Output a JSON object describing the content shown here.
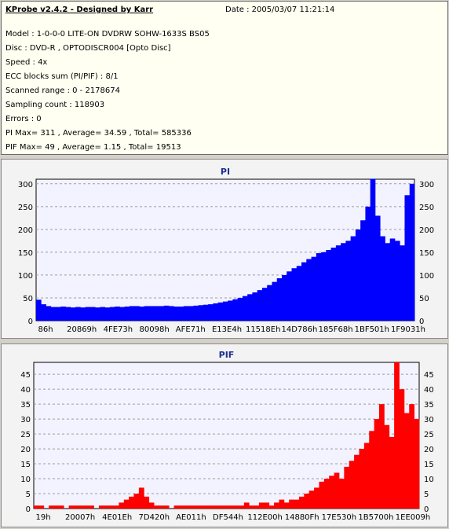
{
  "header": {
    "title": "KProbe v2.4.2 - Designed by Karr",
    "date": "Date : 2005/03/07 11:21:14",
    "lines": [
      "Model : 1-0-0-0 LITE-ON DVDRW SOHW-1633S BS05",
      "Disc : DVD-R , OPTODISCR004 [Opto Disc]",
      "Speed : 4x",
      "ECC blocks sum (PI/PIF) : 8/1",
      "Scanned range : 0 - 2178674",
      "Sampling count : 118903",
      "Errors : 0",
      "PI Max= 311 , Average= 34.59 , Total= 585336",
      "PIF Max= 49 , Average= 1.15 , Total= 19513"
    ]
  },
  "chart_data": [
    {
      "type": "area",
      "title": "PI",
      "ylim": [
        0,
        310
      ],
      "yticks": [
        0,
        50,
        100,
        150,
        200,
        250,
        300
      ],
      "xtick_labels": [
        "86h",
        "20869h",
        "4FE73h",
        "80098h",
        "AFE71h",
        "E13E4h",
        "11518Eh",
        "14D786h",
        "185F68h",
        "1BF501h",
        "1F9031h"
      ],
      "color": "#0000ff",
      "grid": true,
      "y": [
        46,
        36,
        32,
        30,
        30,
        31,
        30,
        29,
        30,
        29,
        30,
        30,
        29,
        30,
        29,
        30,
        31,
        30,
        31,
        32,
        32,
        31,
        32,
        32,
        32,
        32,
        33,
        32,
        31,
        31,
        32,
        32,
        33,
        34,
        35,
        36,
        38,
        40,
        42,
        44,
        47,
        50,
        54,
        58,
        62,
        67,
        72,
        78,
        85,
        93,
        100,
        108,
        115,
        120,
        128,
        135,
        140,
        148,
        150,
        155,
        160,
        165,
        170,
        175,
        185,
        200,
        220,
        250,
        311,
        230,
        185,
        170,
        180,
        175,
        165,
        275,
        300
      ]
    },
    {
      "type": "area",
      "title": "PIF",
      "ylim": [
        0,
        49
      ],
      "yticks": [
        0,
        5,
        10,
        15,
        20,
        25,
        30,
        35,
        40,
        45
      ],
      "xtick_labels": [
        "19h",
        "20007h",
        "4E01Eh",
        "7D420h",
        "AE011h",
        "DF544h",
        "112E00h",
        "14880Fh",
        "17E530h",
        "1B5700h",
        "1EE009h"
      ],
      "color": "#ff0000",
      "grid": true,
      "y": [
        1,
        1,
        0,
        1,
        1,
        1,
        0,
        1,
        1,
        1,
        1,
        1,
        0,
        1,
        1,
        1,
        1,
        2,
        3,
        4,
        5,
        7,
        4,
        2,
        1,
        1,
        1,
        0,
        1,
        1,
        1,
        1,
        1,
        1,
        1,
        1,
        1,
        1,
        1,
        1,
        1,
        1,
        2,
        1,
        1,
        2,
        2,
        1,
        2,
        3,
        2,
        3,
        3,
        4,
        5,
        6,
        7,
        9,
        10,
        11,
        12,
        10,
        14,
        16,
        18,
        20,
        22,
        26,
        30,
        35,
        28,
        24,
        49,
        40,
        32,
        35,
        30
      ]
    }
  ]
}
